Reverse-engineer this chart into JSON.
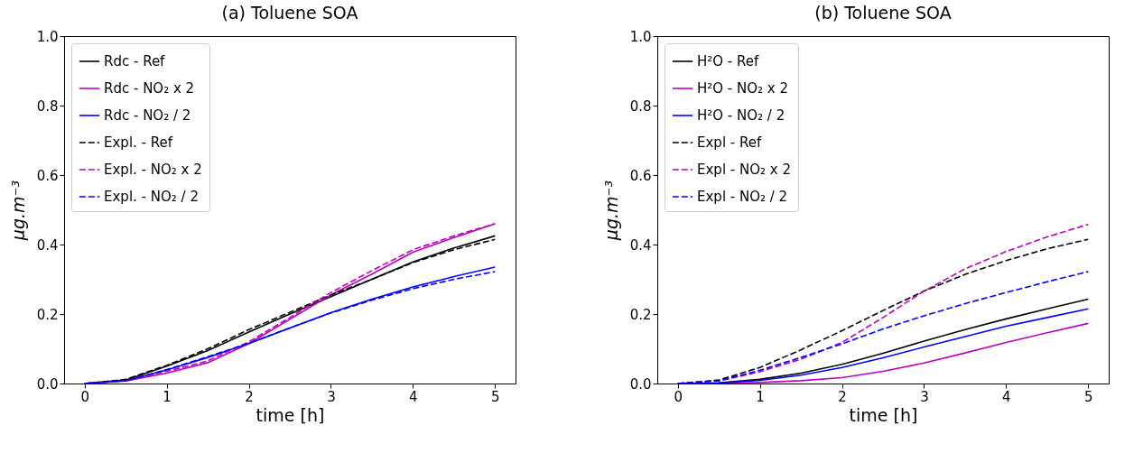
{
  "chart_data": [
    {
      "type": "line",
      "title": "(a) Toluene SOA",
      "xlabel": "time [h]",
      "ylabel": "μg.m⁻³",
      "x": [
        0,
        0.5,
        1,
        1.5,
        2,
        2.5,
        3,
        3.5,
        4,
        4.5,
        5
      ],
      "xlim": [
        -0.25,
        5.25
      ],
      "xticks": [
        0,
        1,
        2,
        3,
        4,
        5
      ],
      "ylim": [
        0,
        1
      ],
      "yticks": [
        {
          "value": 0,
          "label": "0.0"
        },
        {
          "value": 0.2,
          "label": "0.2"
        },
        {
          "value": 0.4,
          "label": "0.4"
        },
        {
          "value": 0.6,
          "label": "0.6"
        },
        {
          "value": 0.8,
          "label": "0.8"
        },
        {
          "value": 1,
          "label": "1.0"
        }
      ],
      "grid": false,
      "legend": "top left",
      "series": [
        {
          "name": "Rdc - Ref",
          "color": "#000000",
          "line_style": "solid",
          "values": [
            0,
            0.01,
            0.05,
            0.095,
            0.148,
            0.2,
            0.25,
            0.3,
            0.35,
            0.39,
            0.425
          ]
        },
        {
          "name": "Rdc - NO₂ x 2",
          "color": "#bf00bf",
          "line_style": "solid",
          "values": [
            0,
            0.007,
            0.03,
            0.06,
            0.115,
            0.185,
            0.255,
            0.315,
            0.378,
            0.42,
            0.46
          ]
        },
        {
          "name": "Rdc - NO₂ / 2",
          "color": "#0000ff",
          "line_style": "solid",
          "values": [
            0,
            0.008,
            0.039,
            0.075,
            0.115,
            0.16,
            0.204,
            0.243,
            0.278,
            0.308,
            0.335
          ]
        },
        {
          "name": "Expl. - Ref",
          "color": "#000000",
          "line_style": "dashed",
          "values": [
            0,
            0.012,
            0.052,
            0.1,
            0.155,
            0.205,
            0.255,
            0.3,
            0.348,
            0.385,
            0.415
          ]
        },
        {
          "name": "Expl. - NO₂ x 2",
          "color": "#bf00bf",
          "line_style": "dashed",
          "values": [
            0,
            0.008,
            0.035,
            0.065,
            0.12,
            0.19,
            0.262,
            0.325,
            0.385,
            0.425,
            0.46
          ]
        },
        {
          "name": "Expl. - NO₂ / 2",
          "color": "#0000ff",
          "line_style": "dashed",
          "values": [
            0,
            0.008,
            0.04,
            0.077,
            0.116,
            0.16,
            0.203,
            0.24,
            0.273,
            0.3,
            0.322
          ]
        }
      ]
    },
    {
      "type": "line",
      "title": "(b) Toluene SOA",
      "xlabel": "time [h]",
      "ylabel": "μg.m⁻³",
      "x": [
        0,
        0.5,
        1,
        1.5,
        2,
        2.5,
        3,
        3.5,
        4,
        4.5,
        5
      ],
      "xlim": [
        -0.25,
        5.25
      ],
      "xticks": [
        0,
        1,
        2,
        3,
        4,
        5
      ],
      "ylim": [
        0,
        1
      ],
      "yticks": [
        {
          "value": 0,
          "label": "0.0"
        },
        {
          "value": 0.2,
          "label": "0.2"
        },
        {
          "value": 0.4,
          "label": "0.4"
        },
        {
          "value": 0.6,
          "label": "0.6"
        },
        {
          "value": 0.8,
          "label": "0.8"
        },
        {
          "value": 1,
          "label": "1.0"
        }
      ],
      "grid": false,
      "legend": "top left",
      "series": [
        {
          "name": "H²O - Ref",
          "color": "#000000",
          "line_style": "solid",
          "values": [
            0,
            0.002,
            0.012,
            0.03,
            0.055,
            0.087,
            0.122,
            0.155,
            0.186,
            0.215,
            0.243
          ]
        },
        {
          "name": "H²O - NO₂ x 2",
          "color": "#bf00bf",
          "line_style": "solid",
          "values": [
            0,
            0,
            0.003,
            0.008,
            0.017,
            0.035,
            0.059,
            0.088,
            0.118,
            0.146,
            0.173
          ]
        },
        {
          "name": "H²O - NO₂ / 2",
          "color": "#0000ff",
          "line_style": "solid",
          "values": [
            0,
            0.001,
            0.009,
            0.024,
            0.046,
            0.074,
            0.105,
            0.135,
            0.165,
            0.19,
            0.215
          ]
        },
        {
          "name": "Expl - Ref",
          "color": "#000000",
          "line_style": "dashed",
          "values": [
            0,
            0.01,
            0.046,
            0.097,
            0.152,
            0.21,
            0.266,
            0.314,
            0.354,
            0.388,
            0.415
          ]
        },
        {
          "name": "Expl - NO₂ x 2",
          "color": "#bf00bf",
          "line_style": "dashed",
          "values": [
            0,
            0.007,
            0.034,
            0.07,
            0.118,
            0.19,
            0.266,
            0.33,
            0.38,
            0.422,
            0.458
          ]
        },
        {
          "name": "Expl - NO₂ / 2",
          "color": "#0000ff",
          "line_style": "dashed",
          "values": [
            0,
            0.008,
            0.038,
            0.075,
            0.114,
            0.157,
            0.195,
            0.23,
            0.262,
            0.293,
            0.322
          ]
        }
      ]
    }
  ]
}
